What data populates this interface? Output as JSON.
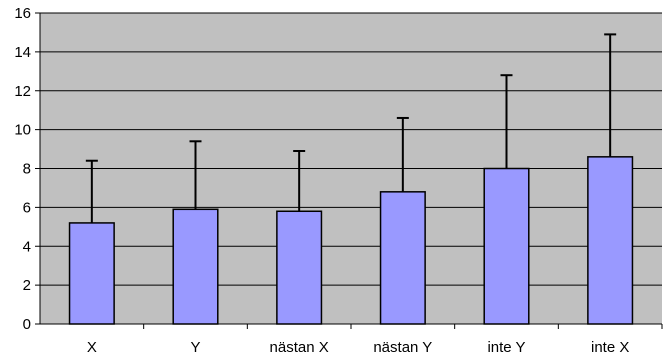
{
  "chart_data": {
    "type": "bar",
    "categories": [
      "X",
      "Y",
      "nästan X",
      "nästan Y",
      "inte Y",
      "inte X"
    ],
    "values": [
      5.2,
      5.9,
      5.8,
      6.8,
      8.0,
      8.6
    ],
    "error_upper": [
      8.4,
      9.4,
      8.9,
      10.6,
      12.8,
      14.9
    ],
    "ylim": [
      0,
      16
    ],
    "yticks": [
      0,
      2,
      4,
      6,
      8,
      10,
      12,
      14,
      16
    ],
    "title": "",
    "xlabel": "",
    "ylabel": "",
    "grid": true,
    "legend": "none",
    "colors": {
      "bar_fill": "#9999ff",
      "bar_stroke": "#000000",
      "plot_bg": "#c0c0c0",
      "grid": "#000000",
      "error_bar": "#000000"
    }
  }
}
